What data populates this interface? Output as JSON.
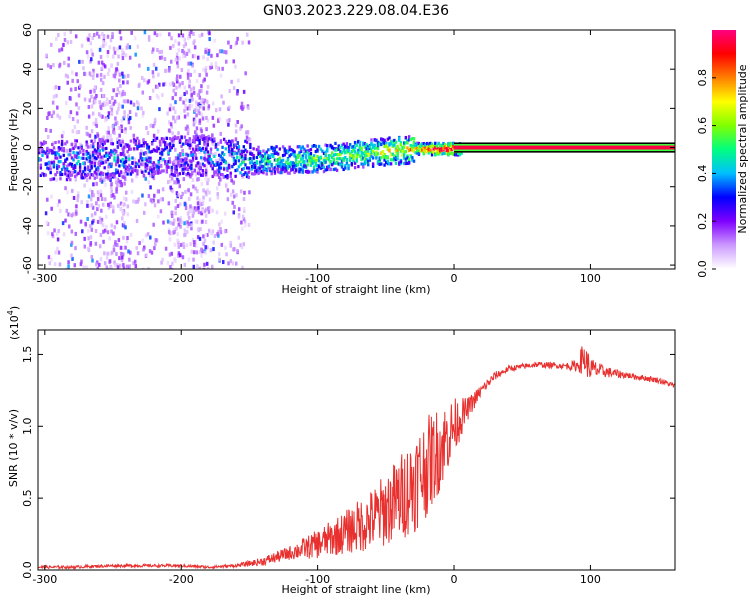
{
  "title": "GN03.2023.229.08.04.E36",
  "chart_data": [
    {
      "type": "heatmap",
      "xlabel": "Height of straight line (km)",
      "ylabel": "Frequency (Hz)",
      "xlim": [
        -305,
        162
      ],
      "ylim": [
        -62,
        60
      ],
      "x_ticks": [
        -300,
        -200,
        -100,
        0,
        100
      ],
      "x_tick_labels": [
        "-300",
        "-200",
        "-100",
        "0",
        "100"
      ],
      "y_ticks": [
        -60,
        -40,
        -20,
        0,
        20,
        40,
        60
      ],
      "y_tick_labels": [
        "-60",
        "-40",
        "-20",
        "0",
        "20",
        "40",
        "60"
      ],
      "ridge": {
        "x": [
          -305,
          -250,
          -200,
          -150,
          -100,
          -60,
          -30,
          -15,
          0,
          50,
          100,
          162
        ],
        "frequency": [
          -6,
          -5,
          -3,
          -6,
          -5,
          -2,
          0,
          0,
          0,
          0,
          0,
          0
        ],
        "amplitude": [
          0.3,
          0.35,
          0.3,
          0.45,
          0.55,
          0.6,
          0.75,
          0.95,
          1.0,
          1.0,
          1.0,
          1.0
        ]
      },
      "noise_bands": [
        {
          "x_range": [
            -300,
            -150
          ],
          "frequency_range": [
            -62,
            60
          ],
          "amplitude": 0.1
        }
      ],
      "colorbar": {
        "label": "Normalized spectral amplitude",
        "range": [
          0,
          1
        ],
        "ticks": [
          0.0,
          0.2,
          0.4,
          0.6,
          0.8
        ],
        "tick_labels": [
          "0.0",
          "0.2",
          "0.4",
          "0.6",
          "0.8"
        ],
        "colors": [
          "#ffffff",
          "#cc99ff",
          "#7f00ff",
          "#0000ff",
          "#00bfff",
          "#00ff80",
          "#80ff00",
          "#ffff00",
          "#ff8000",
          "#ff0000",
          "#ff0080"
        ]
      }
    },
    {
      "type": "line",
      "xlabel": "Height of straight line (km)",
      "ylabel": "SNR (10 * v/v)",
      "y_scale_label": "(x10",
      "y_scale_exponent": "4",
      "y_scale_close": ")",
      "xlim": [
        -305,
        162
      ],
      "ylim": [
        0,
        1.67
      ],
      "x_ticks": [
        -300,
        -200,
        -100,
        0,
        100
      ],
      "x_tick_labels": [
        "-300",
        "-200",
        "-100",
        "0",
        "100"
      ],
      "y_ticks": [
        0,
        0.5,
        1.0,
        1.5
      ],
      "y_tick_labels": [
        "0.0",
        "0.5",
        "1.0",
        "1.5"
      ],
      "series": [
        {
          "name": "SNR",
          "color": "#e8312f",
          "x": [
            -305,
            -280,
            -250,
            -200,
            -180,
            -160,
            -140,
            -120,
            -100,
            -80,
            -60,
            -40,
            -30,
            -20,
            -10,
            0,
            10,
            20,
            30,
            40,
            60,
            80,
            90,
            95,
            100,
            110,
            130,
            150,
            162
          ],
          "y": [
            0.02,
            0.02,
            0.03,
            0.03,
            0.02,
            0.03,
            0.06,
            0.12,
            0.18,
            0.26,
            0.35,
            0.5,
            0.6,
            0.72,
            0.85,
            1.0,
            1.12,
            1.25,
            1.35,
            1.4,
            1.43,
            1.42,
            1.42,
            1.48,
            1.4,
            1.38,
            1.35,
            1.32,
            1.28
          ],
          "noise_amplitude": [
            0.01,
            0.01,
            0.01,
            0.01,
            0.01,
            0.01,
            0.03,
            0.05,
            0.1,
            0.15,
            0.22,
            0.3,
            0.35,
            0.35,
            0.3,
            0.2,
            0.08,
            0.04,
            0.03,
            0.02,
            0.02,
            0.02,
            0.04,
            0.12,
            0.08,
            0.04,
            0.02,
            0.02,
            0.02
          ]
        }
      ]
    }
  ]
}
